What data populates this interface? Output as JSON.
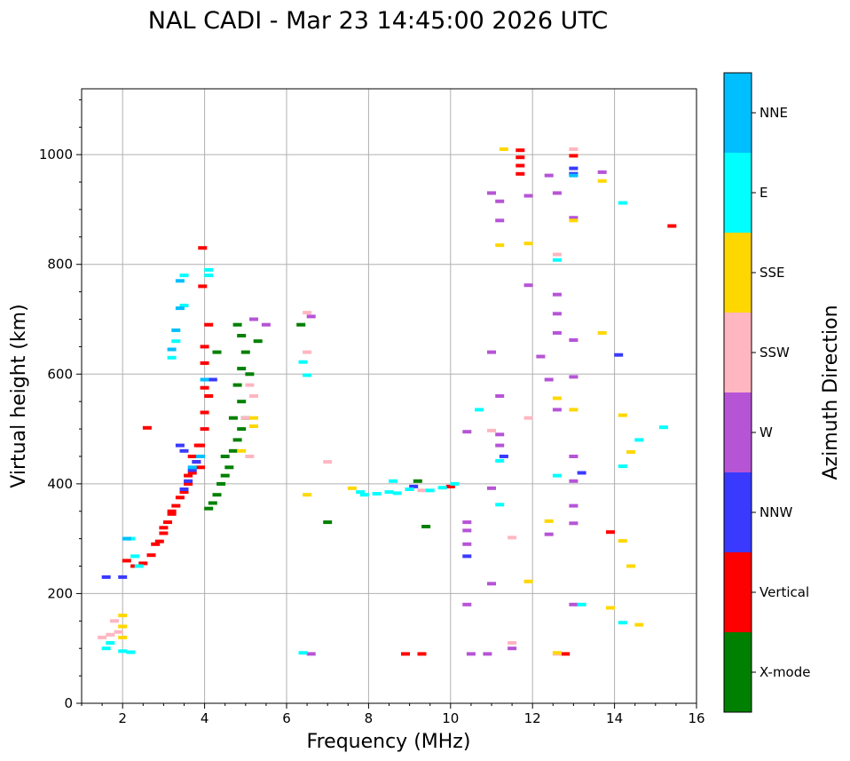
{
  "chart_data": {
    "type": "scatter",
    "title": "NAL CADI - Mar 23 14:45:00 2026 UTC",
    "xlabel": "Frequency (MHz)",
    "ylabel": "Virtual height (km)",
    "xlim": [
      1,
      16
    ],
    "ylim": [
      0,
      1120
    ],
    "xticks": [
      2,
      4,
      6,
      8,
      10,
      12,
      14,
      16
    ],
    "yticks": [
      0,
      200,
      400,
      600,
      800,
      1000
    ],
    "grid": true,
    "colorbar": {
      "title": "Azimuth Direction",
      "categories": [
        {
          "label": "X-mode",
          "color": "#008000"
        },
        {
          "label": "Vertical",
          "color": "#ff0000"
        },
        {
          "label": "NNW",
          "color": "#3a3aff"
        },
        {
          "label": "W",
          "color": "#b654d6"
        },
        {
          "label": "SSW",
          "color": "#ffb6c1"
        },
        {
          "label": "SSE",
          "color": "#ffd700"
        },
        {
          "label": "E",
          "color": "#00ffff"
        },
        {
          "label": "NNE",
          "color": "#00bfff"
        }
      ]
    },
    "series": [
      {
        "name": "Vertical",
        "points": [
          [
            2.1,
            260
          ],
          [
            2.3,
            250
          ],
          [
            2.5,
            255
          ],
          [
            2.7,
            270
          ],
          [
            2.9,
            295
          ],
          [
            3.0,
            310
          ],
          [
            3.1,
            330
          ],
          [
            3.2,
            345
          ],
          [
            3.3,
            360
          ],
          [
            3.4,
            375
          ],
          [
            3.5,
            385
          ],
          [
            3.6,
            400
          ],
          [
            3.7,
            420
          ],
          [
            3.8,
            440
          ],
          [
            3.9,
            470
          ],
          [
            4.0,
            500
          ],
          [
            4.0,
            530
          ],
          [
            4.1,
            560
          ],
          [
            4.1,
            590
          ],
          [
            4.0,
            620
          ],
          [
            4.0,
            650
          ],
          [
            4.1,
            690
          ],
          [
            3.95,
            760
          ],
          [
            3.95,
            830
          ],
          [
            2.6,
            502
          ],
          [
            11.7,
            1008
          ],
          [
            11.7,
            995
          ],
          [
            11.7,
            980
          ],
          [
            11.7,
            965
          ],
          [
            13.0,
            998
          ],
          [
            13.9,
            312
          ],
          [
            15.4,
            870
          ],
          [
            9.3,
            90
          ],
          [
            9.0,
            390
          ],
          [
            8.9,
            90
          ],
          [
            12.8,
            90
          ],
          [
            10.0,
            395
          ],
          [
            3.85,
            470
          ],
          [
            3.9,
            430
          ],
          [
            3.2,
            350
          ],
          [
            3.0,
            320
          ],
          [
            2.8,
            290
          ],
          [
            4.0,
            575
          ],
          [
            3.7,
            450
          ],
          [
            3.6,
            415
          ]
        ]
      },
      {
        "name": "X-mode",
        "points": [
          [
            4.1,
            355
          ],
          [
            4.2,
            365
          ],
          [
            4.3,
            380
          ],
          [
            4.4,
            400
          ],
          [
            4.5,
            415
          ],
          [
            4.6,
            430
          ],
          [
            4.7,
            460
          ],
          [
            4.8,
            480
          ],
          [
            4.9,
            500
          ],
          [
            5.0,
            520
          ],
          [
            4.9,
            550
          ],
          [
            4.8,
            580
          ],
          [
            4.9,
            610
          ],
          [
            5.0,
            640
          ],
          [
            4.9,
            670
          ],
          [
            4.8,
            690
          ],
          [
            5.3,
            660
          ],
          [
            6.35,
            690
          ],
          [
            7.0,
            330
          ],
          [
            9.4,
            322
          ],
          [
            9.2,
            405
          ],
          [
            13.0,
            965
          ],
          [
            4.5,
            450
          ],
          [
            4.7,
            520
          ],
          [
            5.1,
            600
          ],
          [
            4.3,
            640
          ]
        ]
      },
      {
        "name": "NNW",
        "points": [
          [
            3.5,
            390
          ],
          [
            3.6,
            405
          ],
          [
            3.7,
            425
          ],
          [
            3.5,
            460
          ],
          [
            3.8,
            440
          ],
          [
            4.2,
            590
          ],
          [
            11.3,
            450
          ],
          [
            14.1,
            635
          ],
          [
            13.2,
            420
          ],
          [
            10.4,
            268
          ],
          [
            13.0,
            965
          ],
          [
            13.0,
            975
          ],
          [
            2.0,
            230
          ],
          [
            1.6,
            230
          ],
          [
            3.4,
            470
          ],
          [
            9.1,
            395
          ]
        ]
      },
      {
        "name": "W",
        "points": [
          [
            5.5,
            690
          ],
          [
            5.2,
            700
          ],
          [
            6.6,
            705
          ],
          [
            11.0,
            930
          ],
          [
            11.2,
            915
          ],
          [
            11.2,
            880
          ],
          [
            11.9,
            925
          ],
          [
            11.9,
            762
          ],
          [
            12.2,
            632
          ],
          [
            12.4,
            590
          ],
          [
            12.6,
            745
          ],
          [
            12.6,
            710
          ],
          [
            12.6,
            675
          ],
          [
            12.6,
            535
          ],
          [
            12.6,
            930
          ],
          [
            12.4,
            962
          ],
          [
            13.0,
            885
          ],
          [
            13.0,
            662
          ],
          [
            13.0,
            595
          ],
          [
            13.0,
            450
          ],
          [
            13.0,
            405
          ],
          [
            13.0,
            360
          ],
          [
            13.0,
            328
          ],
          [
            13.0,
            180
          ],
          [
            10.4,
            330
          ],
          [
            10.4,
            315
          ],
          [
            10.4,
            290
          ],
          [
            10.4,
            180
          ],
          [
            10.5,
            90
          ],
          [
            11.0,
            640
          ],
          [
            11.2,
            560
          ],
          [
            11.2,
            490
          ],
          [
            11.2,
            470
          ],
          [
            11.0,
            392
          ],
          [
            11.0,
            218
          ],
          [
            10.9,
            90
          ],
          [
            13.7,
            968
          ],
          [
            12.4,
            308
          ],
          [
            11.5,
            100
          ],
          [
            6.6,
            90
          ],
          [
            10.4,
            495
          ]
        ]
      },
      {
        "name": "SSW",
        "points": [
          [
            1.5,
            120
          ],
          [
            1.7,
            125
          ],
          [
            1.9,
            130
          ],
          [
            1.8,
            150
          ],
          [
            5.1,
            580
          ],
          [
            5.2,
            560
          ],
          [
            5.0,
            520
          ],
          [
            5.1,
            450
          ],
          [
            6.5,
            640
          ],
          [
            6.5,
            712
          ],
          [
            7.0,
            440
          ],
          [
            11.9,
            520
          ],
          [
            11.5,
            302
          ],
          [
            11.5,
            110
          ],
          [
            12.6,
            818
          ],
          [
            13.0,
            1010
          ],
          [
            12.6,
            90
          ],
          [
            9.3,
            388
          ],
          [
            11.0,
            497
          ]
        ]
      },
      {
        "name": "SSE",
        "points": [
          [
            2.0,
            160
          ],
          [
            2.0,
            140
          ],
          [
            2.0,
            120
          ],
          [
            5.2,
            520
          ],
          [
            5.2,
            505
          ],
          [
            4.9,
            460
          ],
          [
            6.5,
            380
          ],
          [
            7.6,
            392
          ],
          [
            11.3,
            1010
          ],
          [
            11.2,
            835
          ],
          [
            11.9,
            838
          ],
          [
            11.9,
            222
          ],
          [
            12.4,
            332
          ],
          [
            12.6,
            556
          ],
          [
            13.0,
            535
          ],
          [
            13.0,
            880
          ],
          [
            13.7,
            952
          ],
          [
            13.7,
            675
          ],
          [
            13.9,
            174
          ],
          [
            14.2,
            525
          ],
          [
            14.2,
            296
          ],
          [
            14.4,
            458
          ],
          [
            14.4,
            250
          ],
          [
            14.6,
            143
          ],
          [
            12.6,
            92
          ]
        ]
      },
      {
        "name": "E",
        "points": [
          [
            1.6,
            100
          ],
          [
            1.7,
            110
          ],
          [
            2.0,
            95
          ],
          [
            2.2,
            93
          ],
          [
            2.2,
            300
          ],
          [
            2.3,
            268
          ],
          [
            2.4,
            250
          ],
          [
            3.2,
            630
          ],
          [
            3.3,
            660
          ],
          [
            3.5,
            725
          ],
          [
            3.5,
            780
          ],
          [
            4.1,
            790
          ],
          [
            4.1,
            780
          ],
          [
            6.4,
            622
          ],
          [
            6.5,
            598
          ],
          [
            6.4,
            92
          ],
          [
            7.8,
            385
          ],
          [
            7.9,
            380
          ],
          [
            8.2,
            382
          ],
          [
            8.5,
            385
          ],
          [
            8.6,
            405
          ],
          [
            8.7,
            383
          ],
          [
            9.0,
            390
          ],
          [
            9.5,
            388
          ],
          [
            9.8,
            393
          ],
          [
            10.1,
            400
          ],
          [
            10.7,
            535
          ],
          [
            11.2,
            442
          ],
          [
            11.2,
            362
          ],
          [
            12.6,
            808
          ],
          [
            12.6,
            415
          ],
          [
            13.2,
            180
          ],
          [
            14.2,
            912
          ],
          [
            14.2,
            432
          ],
          [
            14.2,
            147
          ],
          [
            14.6,
            480
          ],
          [
            15.2,
            503
          ]
        ]
      },
      {
        "name": "NNE",
        "points": [
          [
            3.2,
            645
          ],
          [
            3.3,
            680
          ],
          [
            3.4,
            720
          ],
          [
            3.4,
            770
          ],
          [
            3.7,
            430
          ],
          [
            3.9,
            450
          ],
          [
            4.0,
            590
          ],
          [
            2.1,
            300
          ],
          [
            13.0,
            962
          ]
        ]
      }
    ]
  }
}
